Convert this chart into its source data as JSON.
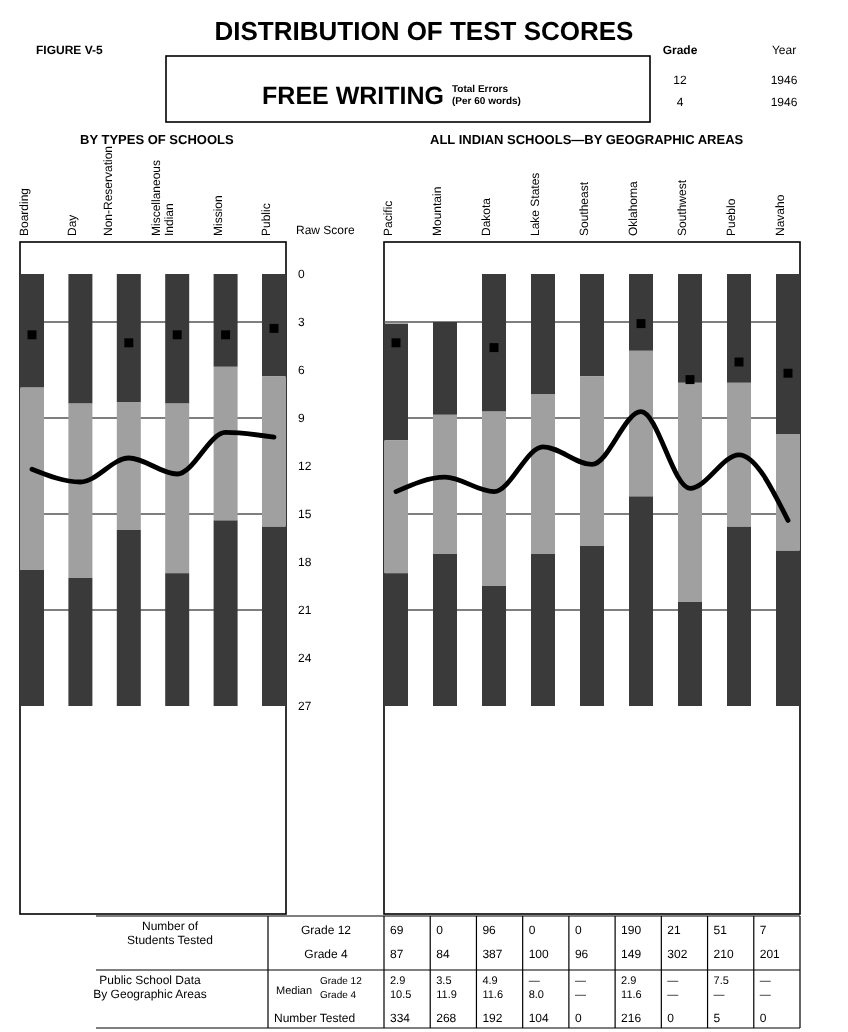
{
  "chart_data": [
    {
      "type": "other",
      "title": "DISTRIBUTION OF TEST SCORES",
      "subtitle": "FREE WRITING",
      "annotations": [
        "FIGURE V-5",
        "Total Errors",
        "(Per 60 words)",
        "Grade",
        "Year",
        "12",
        "1946",
        "4",
        "1946"
      ]
    },
    {
      "type": "bar",
      "title": "BY TYPES OF SCHOOLS",
      "ylabel": "Raw Score",
      "categories": [
        "Boarding",
        "Day",
        "Non-Reservation",
        "Miscellaneous Indian",
        "Mission",
        "Public"
      ],
      "ylim": [
        40,
        -2
      ],
      "yticks": [
        0,
        3,
        6,
        9,
        12,
        15,
        18,
        21,
        24,
        27
      ],
      "ref_lines": [
        {
          "axis": "y",
          "value": 3,
          "color": "#555555"
        },
        {
          "axis": "y",
          "value": 9,
          "color": "#555555"
        },
        {
          "axis": "y",
          "value": 15,
          "color": "#555555"
        },
        {
          "axis": "y",
          "value": 21,
          "color": "#555555"
        }
      ],
      "series": [
        {
          "color": "#3a3a3a",
          "base": [
            0,
            0,
            0,
            0,
            0,
            0
          ],
          "values": [
            7.1,
            8.1,
            8.0,
            8.1,
            5.8,
            6.4
          ]
        },
        {
          "color": "#a0a0a0",
          "base": [
            7.1,
            8.1,
            8.0,
            8.1,
            5.8,
            6.4
          ],
          "values": [
            11.4,
            10.9,
            8.0,
            10.6,
            9.6,
            9.4
          ]
        },
        {
          "color": "#3a3a3a",
          "base": [
            18.5,
            19.0,
            16.0,
            18.7,
            15.4,
            15.8
          ],
          "values": [
            8.5,
            8.0,
            11.0,
            8.3,
            11.6,
            11.2
          ]
        },
        {
          "type": "scatter",
          "marker": "square",
          "color": "#000000",
          "values": [
            3.8,
            null,
            4.3,
            3.8,
            3.8,
            3.4
          ]
        },
        {
          "type": "line",
          "color": "#000000",
          "values": [
            12.2,
            13.0,
            11.5,
            12.5,
            9.9,
            10.2
          ]
        }
      ]
    },
    {
      "type": "bar",
      "title": "ALL INDIAN SCHOOLS—BY GEOGRAPHIC AREAS",
      "categories": [
        "Pacific",
        "Mountain",
        "Dakota",
        "Lake States",
        "Southeast",
        "Oklahoma",
        "Southwest",
        "Pueblo",
        "Navaho"
      ],
      "ylim": [
        40,
        -2
      ],
      "tick_labels": "x",
      "ref_lines": [
        {
          "axis": "y",
          "value": 3,
          "color": "#555555"
        },
        {
          "axis": "y",
          "value": 9,
          "color": "#555555"
        },
        {
          "axis": "y",
          "value": 15,
          "color": "#555555"
        },
        {
          "axis": "y",
          "value": 21,
          "color": "#555555"
        }
      ],
      "series": [
        {
          "color": "#3a3a3a",
          "base": [
            3.1,
            3.0,
            0,
            0,
            0,
            0,
            0,
            0,
            0
          ],
          "values": [
            7.3,
            5.8,
            8.6,
            7.5,
            6.4,
            4.8,
            6.8,
            6.8,
            10.0
          ]
        },
        {
          "color": "#a0a0a0",
          "base": [
            10.4,
            8.8,
            8.6,
            7.5,
            6.4,
            4.8,
            6.8,
            6.8,
            10.0
          ],
          "values": [
            8.3,
            8.7,
            10.9,
            10.0,
            10.6,
            9.1,
            13.7,
            9.0,
            7.3
          ]
        },
        {
          "color": "#3a3a3a",
          "base": [
            18.7,
            17.5,
            19.5,
            17.5,
            17.0,
            13.9,
            20.5,
            15.8,
            17.3
          ],
          "values": [
            8.3,
            9.5,
            7.5,
            9.5,
            10.0,
            13.1,
            6.5,
            11.2,
            9.7
          ]
        },
        {
          "type": "scatter",
          "marker": "square",
          "color": "#000000",
          "values": [
            4.3,
            null,
            4.6,
            null,
            null,
            3.1,
            6.6,
            5.5,
            6.2
          ]
        },
        {
          "type": "line",
          "color": "#000000",
          "values": [
            13.6,
            12.7,
            13.6,
            10.8,
            11.9,
            8.6,
            13.4,
            11.3,
            15.4
          ]
        }
      ]
    },
    {
      "type": "other",
      "annotations": [
        "Number of Students Tested",
        "Public School Data By Geographic Areas",
        "Median",
        "Grade 12",
        "Grade 4",
        "Grade 12",
        "Grade 4",
        "Number Tested",
        "69",
        "0",
        "96",
        "0",
        "0",
        "190",
        "21",
        "51",
        "7",
        "87",
        "84",
        "387",
        "100",
        "96",
        "149",
        "302",
        "210",
        "201",
        "2.9",
        "3.5",
        "4.9",
        "—",
        "—",
        "2.9",
        "—",
        "7.5",
        "—",
        "10.5",
        "11.9",
        "11.6",
        "8.0",
        "—",
        "11.6",
        "—",
        "—",
        "—",
        "334",
        "268",
        "192",
        "104",
        "0",
        "216",
        "0",
        "5",
        "0"
      ]
    }
  ]
}
